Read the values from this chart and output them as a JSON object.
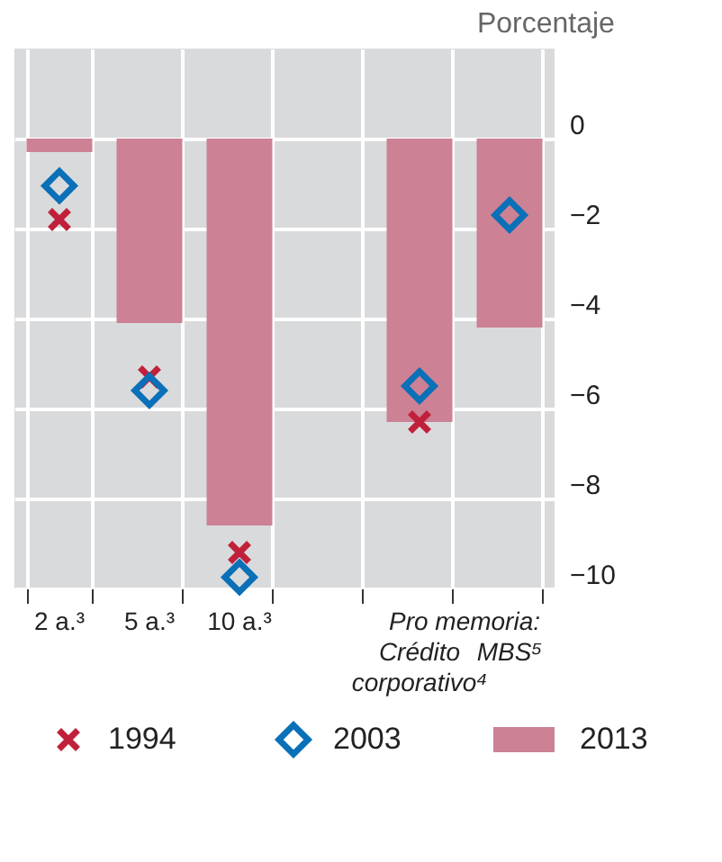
{
  "chart_data": {
    "type": "bar",
    "ylabel": "Porcentaje",
    "categories": [
      "2 a.³",
      "5 a.³",
      "10 a.³",
      null,
      "Crédito corporativo⁴",
      "MBS⁵"
    ],
    "series": [
      {
        "name": "1994",
        "type": "scatter",
        "marker": "cross",
        "color": "#c0203a",
        "values": [
          -1.8,
          -5.3,
          -9.2,
          null,
          -6.3,
          null
        ]
      },
      {
        "name": "2003",
        "type": "scatter",
        "marker": "diamond",
        "color": "#0a70b8",
        "values": [
          -1.05,
          -5.6,
          -9.75,
          null,
          -5.5,
          -1.7
        ]
      },
      {
        "name": "2013",
        "color": "#cc8195",
        "values": [
          -0.3,
          -4.1,
          -8.6,
          0,
          -6.3,
          -4.2
        ]
      }
    ],
    "ylim": [
      -10,
      2
    ],
    "yticks": [
      0,
      -2,
      -4,
      -6,
      -8,
      -10
    ],
    "grid": true,
    "legend": "bottom",
    "annotations": [
      "Pro memoria:"
    ]
  }
}
